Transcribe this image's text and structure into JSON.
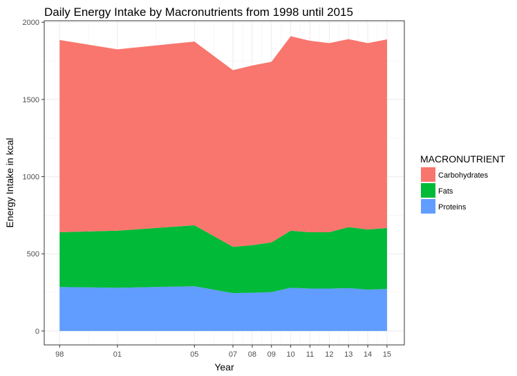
{
  "chart_data": {
    "type": "area",
    "stacked": true,
    "title": "Daily Energy Intake by Macronutrients from 1998 until 2015",
    "xlabel": "Year",
    "ylabel": "Energy Intake in kcal",
    "x": [
      1998,
      2001,
      2005,
      2007,
      2008,
      2009,
      2010,
      2011,
      2012,
      2013,
      2014,
      2015
    ],
    "x_tick_values": [
      1998,
      2001,
      2005,
      2007,
      2008,
      2009,
      2010,
      2011,
      2012,
      2013,
      2014,
      2015
    ],
    "x_tick_labels": [
      "98",
      "01",
      "05",
      "07",
      "08",
      "09",
      "10",
      "11",
      "12",
      "13",
      "14",
      "15"
    ],
    "xlim": [
      1997.2,
      2015.9
    ],
    "y_tick_values": [
      0,
      500,
      1000,
      1500,
      2000
    ],
    "y_tick_labels": [
      "0",
      "500",
      "1000",
      "1500",
      "2000"
    ],
    "ylim": [
      -90,
      2010
    ],
    "grid": true,
    "legend_position": "right",
    "legend_title": "MACRONUTRIENT",
    "series": [
      {
        "name": "Proteins",
        "color": "#619CFF",
        "values": [
          285,
          280,
          290,
          245,
          248,
          252,
          280,
          275,
          275,
          278,
          268,
          272
        ]
      },
      {
        "name": "Fats",
        "color": "#00BA38",
        "values": [
          355,
          370,
          395,
          300,
          308,
          322,
          370,
          365,
          365,
          395,
          390,
          395
        ]
      },
      {
        "name": "Carbohydrates",
        "color": "#F8766D",
        "values": [
          1245,
          1175,
          1190,
          1145,
          1164,
          1170,
          1260,
          1240,
          1225,
          1218,
          1207,
          1222
        ]
      }
    ],
    "legend_order": [
      "Carbohydrates",
      "Fats",
      "Proteins"
    ]
  }
}
